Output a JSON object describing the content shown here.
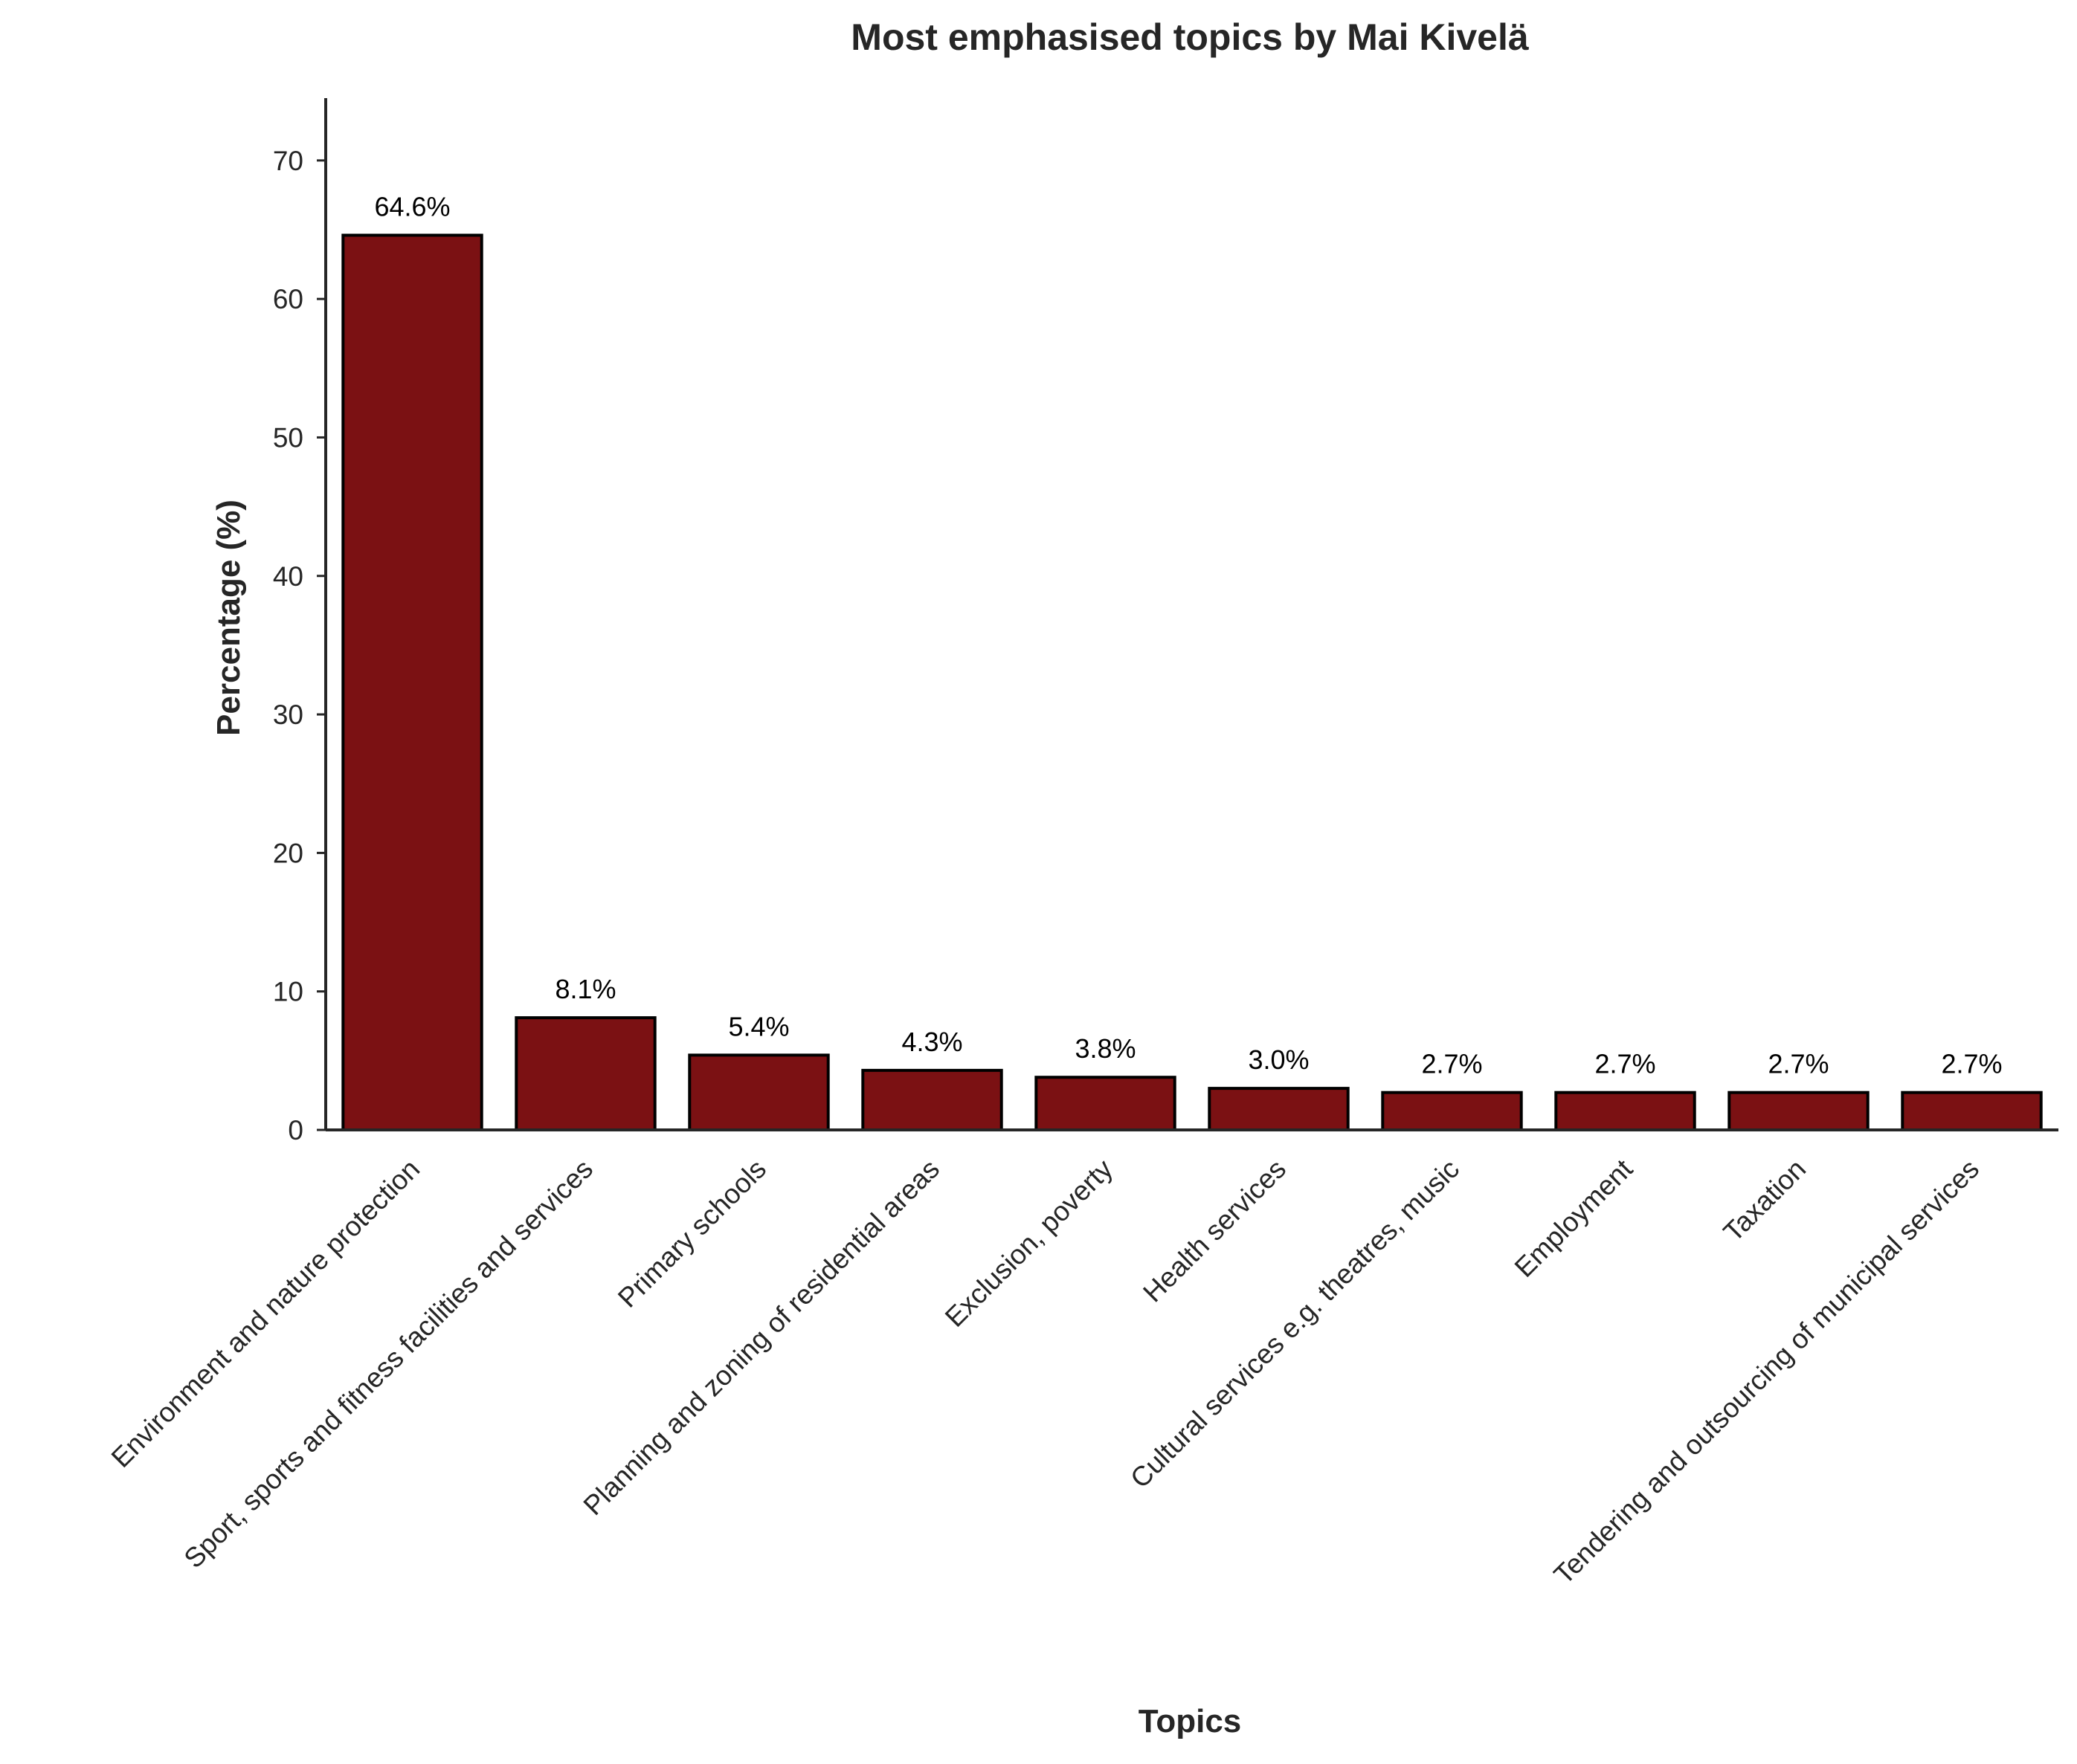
{
  "chart_data": {
    "type": "bar",
    "title": "Most emphasised topics by Mai Kivelä",
    "xlabel": "Topics",
    "ylabel": "Percentage (%)",
    "categories": [
      "Environment and nature protection",
      "Sport, sports and fitness facilities and services",
      "Primary schools",
      "Planning and zoning of residential areas",
      "Exclusion, poverty",
      "Health services",
      "Cultural services e.g. theatres, music",
      "Employment",
      "Taxation",
      "Tendering and outsourcing of municipal services"
    ],
    "values": [
      64.6,
      8.1,
      5.4,
      4.3,
      3.8,
      3.0,
      2.7,
      2.7,
      2.7,
      2.7
    ],
    "data_labels": [
      "64.6%",
      "8.1%",
      "5.4%",
      "4.3%",
      "3.8%",
      "3.0%",
      "2.7%",
      "2.7%",
      "2.7%",
      "2.7%"
    ],
    "ylim": [
      0,
      74.5
    ],
    "yticks": [
      0,
      10,
      20,
      30,
      40,
      50,
      60,
      70
    ],
    "grid": false,
    "legend": "none",
    "bar_color": "#7b1113",
    "edge_color": "#000000"
  }
}
